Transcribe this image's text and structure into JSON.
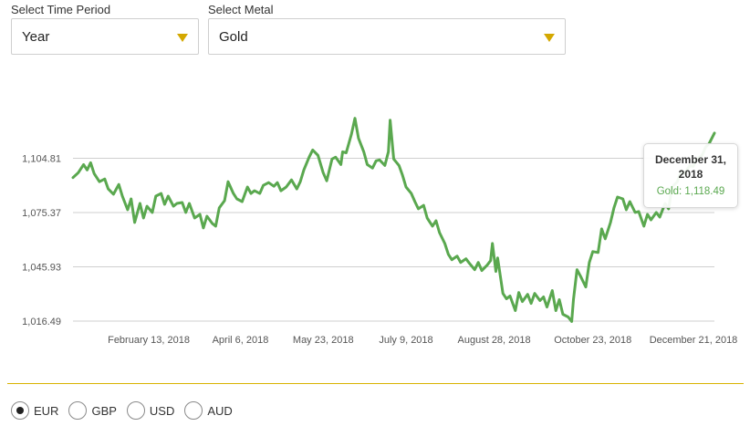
{
  "controls": {
    "time_period_label": "Select Time Period",
    "time_period_value": "Year",
    "metal_label": "Select Metal",
    "metal_value": "Gold",
    "arrow_icon": "triangle-down-icon",
    "accent_color": "#d4a800"
  },
  "tooltip": {
    "date": "December 31, 2018",
    "value_text": "Gold: 1,118.49"
  },
  "currencies": {
    "options": [
      "EUR",
      "GBP",
      "USD",
      "AUD"
    ],
    "selected": "EUR"
  },
  "chart_data": {
    "type": "line",
    "series": [
      {
        "color": "#5aa84f",
        "points": [
          [
            "2018-01-01",
            1094.3
          ],
          [
            "2018-01-04",
            1097.0
          ],
          [
            "2018-01-07",
            1101.4
          ],
          [
            "2018-01-09",
            1098.5
          ],
          [
            "2018-01-11",
            1102.4
          ],
          [
            "2018-01-13",
            1096.5
          ],
          [
            "2018-01-16",
            1092.1
          ],
          [
            "2018-01-19",
            1093.6
          ],
          [
            "2018-01-21",
            1088.2
          ],
          [
            "2018-01-24",
            1085.3
          ],
          [
            "2018-01-27",
            1090.6
          ],
          [
            "2018-01-29",
            1084.3
          ],
          [
            "2018-02-01",
            1076.9
          ],
          [
            "2018-02-03",
            1082.8
          ],
          [
            "2018-02-05",
            1070.0
          ],
          [
            "2018-02-08",
            1080.3
          ],
          [
            "2018-02-10",
            1072.4
          ],
          [
            "2018-02-12",
            1078.8
          ],
          [
            "2018-02-15",
            1075.4
          ],
          [
            "2018-02-17",
            1084.3
          ],
          [
            "2018-02-20",
            1085.7
          ],
          [
            "2018-02-22",
            1079.8
          ],
          [
            "2018-02-24",
            1084.3
          ],
          [
            "2018-02-27",
            1078.8
          ],
          [
            "2018-03-01",
            1080.3
          ],
          [
            "2018-03-04",
            1080.8
          ],
          [
            "2018-03-06",
            1075.4
          ],
          [
            "2018-03-08",
            1080.3
          ],
          [
            "2018-03-11",
            1072.4
          ],
          [
            "2018-03-14",
            1074.4
          ],
          [
            "2018-03-16",
            1067.0
          ],
          [
            "2018-03-18",
            1073.4
          ],
          [
            "2018-03-21",
            1069.5
          ],
          [
            "2018-03-23",
            1068.0
          ],
          [
            "2018-03-25",
            1077.9
          ],
          [
            "2018-03-28",
            1081.8
          ],
          [
            "2018-03-30",
            1092.1
          ],
          [
            "2018-04-02",
            1085.7
          ],
          [
            "2018-04-04",
            1082.8
          ],
          [
            "2018-04-07",
            1081.3
          ],
          [
            "2018-04-10",
            1089.2
          ],
          [
            "2018-04-12",
            1085.7
          ],
          [
            "2018-04-14",
            1087.2
          ],
          [
            "2018-04-17",
            1085.7
          ],
          [
            "2018-04-19",
            1090.1
          ],
          [
            "2018-04-22",
            1091.6
          ],
          [
            "2018-04-25",
            1089.6
          ],
          [
            "2018-04-27",
            1091.6
          ],
          [
            "2018-04-29",
            1087.2
          ],
          [
            "2018-05-02",
            1089.2
          ],
          [
            "2018-05-05",
            1093.1
          ],
          [
            "2018-05-08",
            1088.2
          ],
          [
            "2018-05-10",
            1092.1
          ],
          [
            "2018-05-12",
            1098.5
          ],
          [
            "2018-05-15",
            1105.4
          ],
          [
            "2018-05-17",
            1109.3
          ],
          [
            "2018-05-20",
            1106.4
          ],
          [
            "2018-05-23",
            1097.0
          ],
          [
            "2018-05-25",
            1092.6
          ],
          [
            "2018-05-28",
            1104.4
          ],
          [
            "2018-05-30",
            1105.4
          ],
          [
            "2018-06-02",
            1101.4
          ],
          [
            "2018-06-03",
            1108.3
          ],
          [
            "2018-06-05",
            1107.8
          ],
          [
            "2018-06-08",
            1117.7
          ],
          [
            "2018-06-10",
            1126.5
          ],
          [
            "2018-06-12",
            1115.7
          ],
          [
            "2018-06-15",
            1108.3
          ],
          [
            "2018-06-17",
            1101.4
          ],
          [
            "2018-06-20",
            1099.5
          ],
          [
            "2018-06-22",
            1103.4
          ],
          [
            "2018-06-24",
            1103.9
          ],
          [
            "2018-06-27",
            1100.9
          ],
          [
            "2018-06-29",
            1108.3
          ],
          [
            "2018-06-30",
            1125.5
          ],
          [
            "2018-07-02",
            1104.4
          ],
          [
            "2018-07-05",
            1100.9
          ],
          [
            "2018-07-07",
            1095.5
          ],
          [
            "2018-07-09",
            1089.2
          ],
          [
            "2018-07-12",
            1085.7
          ],
          [
            "2018-07-14",
            1081.3
          ],
          [
            "2018-07-16",
            1077.4
          ],
          [
            "2018-07-19",
            1079.3
          ],
          [
            "2018-07-21",
            1072.4
          ],
          [
            "2018-07-24",
            1068.0
          ],
          [
            "2018-07-26",
            1070.9
          ],
          [
            "2018-07-28",
            1064.5
          ],
          [
            "2018-07-31",
            1058.6
          ],
          [
            "2018-08-02",
            1052.7
          ],
          [
            "2018-08-04",
            1049.8
          ],
          [
            "2018-08-07",
            1051.7
          ],
          [
            "2018-08-09",
            1048.3
          ],
          [
            "2018-08-12",
            1050.3
          ],
          [
            "2018-08-14",
            1047.8
          ],
          [
            "2018-08-17",
            1044.4
          ],
          [
            "2018-08-19",
            1048.3
          ],
          [
            "2018-08-21",
            1043.9
          ],
          [
            "2018-08-24",
            1046.8
          ],
          [
            "2018-08-26",
            1049.3
          ],
          [
            "2018-08-27",
            1058.6
          ],
          [
            "2018-08-29",
            1043.4
          ],
          [
            "2018-08-30",
            1050.8
          ],
          [
            "2018-09-02",
            1031.5
          ],
          [
            "2018-09-04",
            1028.6
          ],
          [
            "2018-09-06",
            1030.1
          ],
          [
            "2018-09-09",
            1022.2
          ],
          [
            "2018-09-11",
            1032.0
          ],
          [
            "2018-09-13",
            1027.1
          ],
          [
            "2018-09-16",
            1031.0
          ],
          [
            "2018-09-18",
            1026.1
          ],
          [
            "2018-09-20",
            1031.5
          ],
          [
            "2018-09-23",
            1027.6
          ],
          [
            "2018-09-25",
            1029.6
          ],
          [
            "2018-09-27",
            1024.1
          ],
          [
            "2018-09-30",
            1033.0
          ],
          [
            "2018-10-02",
            1022.2
          ],
          [
            "2018-10-04",
            1028.1
          ],
          [
            "2018-10-06",
            1020.2
          ],
          [
            "2018-10-09",
            1018.7
          ],
          [
            "2018-10-11",
            1016.3
          ],
          [
            "2018-10-12",
            1028.1
          ],
          [
            "2018-10-14",
            1044.4
          ],
          [
            "2018-10-16",
            1040.9
          ],
          [
            "2018-10-19",
            1035.0
          ],
          [
            "2018-10-21",
            1048.3
          ],
          [
            "2018-10-23",
            1054.2
          ],
          [
            "2018-10-26",
            1053.7
          ],
          [
            "2018-10-28",
            1066.5
          ],
          [
            "2018-10-30",
            1061.1
          ],
          [
            "2018-11-02",
            1070.0
          ],
          [
            "2018-11-04",
            1077.9
          ],
          [
            "2018-11-06",
            1083.8
          ],
          [
            "2018-11-09",
            1082.8
          ],
          [
            "2018-11-11",
            1076.9
          ],
          [
            "2018-11-13",
            1081.3
          ],
          [
            "2018-11-16",
            1075.4
          ],
          [
            "2018-11-18",
            1075.9
          ],
          [
            "2018-11-21",
            1068.0
          ],
          [
            "2018-11-23",
            1074.4
          ],
          [
            "2018-11-25",
            1071.4
          ],
          [
            "2018-11-28",
            1075.4
          ],
          [
            "2018-11-30",
            1072.9
          ],
          [
            "2018-12-03",
            1080.3
          ],
          [
            "2018-12-05",
            1077.4
          ],
          [
            "2018-12-07",
            1089.2
          ],
          [
            "2018-12-10",
            1092.1
          ],
          [
            "2018-12-12",
            1098.0
          ],
          [
            "2018-12-14",
            1096.5
          ],
          [
            "2018-12-17",
            1100.9
          ],
          [
            "2018-12-19",
            1100.4
          ],
          [
            "2018-12-21",
            1104.4
          ],
          [
            "2018-12-24",
            1106.4
          ],
          [
            "2018-12-26",
            1110.8
          ],
          [
            "2018-12-28",
            1112.8
          ],
          [
            "2018-12-31",
            1118.49
          ]
        ]
      }
    ],
    "y_ticks": [
      "1,016.49",
      "1,045.93",
      "1,075.37",
      "1,104.81"
    ],
    "y_tick_values": [
      1016.49,
      1045.93,
      1075.37,
      1104.81
    ],
    "x_ticks": [
      "February 13, 2018",
      "April 6, 2018",
      "May 23, 2018",
      "July 9, 2018",
      "August 28, 2018",
      "October 23, 2018",
      "December 21, 2018"
    ],
    "x_tick_dates": [
      "2018-02-13",
      "2018-04-06",
      "2018-05-23",
      "2018-07-09",
      "2018-08-28",
      "2018-10-23",
      "2018-12-21"
    ],
    "x_range": [
      "2018-01-01",
      "2018-12-31"
    ],
    "ylim": [
      1016.49,
      1121.0
    ],
    "grid": true,
    "highlighted_point": [
      "2018-12-31",
      1118.49
    ]
  }
}
